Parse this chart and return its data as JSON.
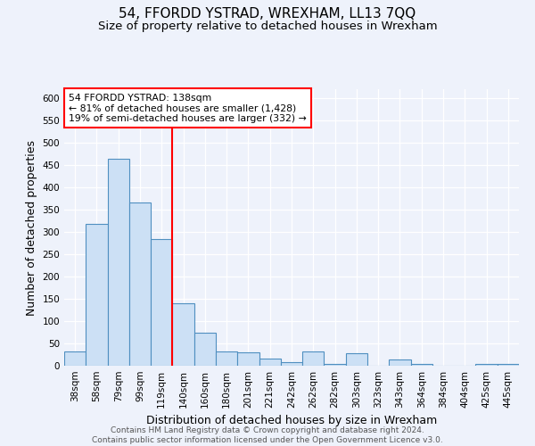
{
  "title": "54, FFORDD YSTRAD, WREXHAM, LL13 7QQ",
  "subtitle": "Size of property relative to detached houses in Wrexham",
  "xlabel": "Distribution of detached houses by size in Wrexham",
  "ylabel": "Number of detached properties",
  "bar_labels": [
    "38sqm",
    "58sqm",
    "79sqm",
    "99sqm",
    "119sqm",
    "140sqm",
    "160sqm",
    "180sqm",
    "201sqm",
    "221sqm",
    "242sqm",
    "262sqm",
    "282sqm",
    "303sqm",
    "323sqm",
    "343sqm",
    "364sqm",
    "384sqm",
    "404sqm",
    "425sqm",
    "445sqm"
  ],
  "bar_heights": [
    32,
    318,
    465,
    367,
    285,
    140,
    75,
    33,
    30,
    16,
    8,
    32,
    5,
    28,
    0,
    15,
    5,
    0,
    0,
    5,
    5
  ],
  "bar_color": "#cce0f5",
  "bar_edge_color": "#4f8fc0",
  "vline_x": 4.5,
  "vline_color": "red",
  "annotation_title": "54 FFORDD YSTRAD: 138sqm",
  "annotation_line1": "← 81% of detached houses are smaller (1,428)",
  "annotation_line2": "19% of semi-detached houses are larger (332) →",
  "annotation_box_color": "white",
  "annotation_box_edge": "red",
  "footer1": "Contains HM Land Registry data © Crown copyright and database right 2024.",
  "footer2": "Contains public sector information licensed under the Open Government Licence v3.0.",
  "ylim": [
    0,
    620
  ],
  "yticks": [
    0,
    50,
    100,
    150,
    200,
    250,
    300,
    350,
    400,
    450,
    500,
    550,
    600
  ],
  "bg_color": "#eef2fb",
  "grid_color": "white",
  "title_fontsize": 11,
  "subtitle_fontsize": 9.5,
  "axis_label_fontsize": 9,
  "tick_fontsize": 7.5,
  "footer_fontsize": 6.5
}
